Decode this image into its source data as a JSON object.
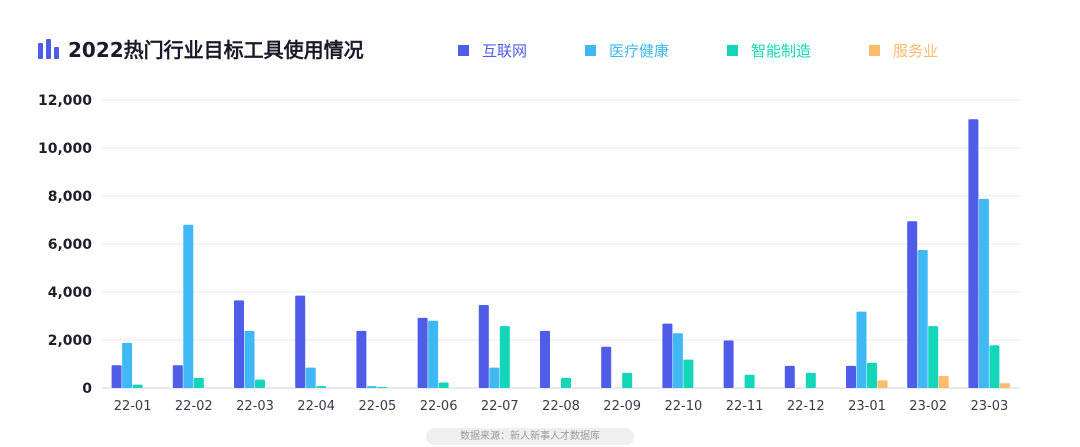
{
  "header": {
    "title": "2022热门行业目标工具使用情况",
    "icon": "bar-chart-icon"
  },
  "footer": {
    "source": "数据来源：新人新事人才数据库"
  },
  "chart_data": {
    "type": "bar",
    "title": "2022热门行业目标工具使用情况",
    "xlabel": "",
    "ylabel": "",
    "ylim": [
      0,
      12000
    ],
    "yticks": [
      0,
      2000,
      4000,
      6000,
      8000,
      10000,
      12000
    ],
    "ytick_labels": [
      "0",
      "2,000",
      "4,000",
      "6,000",
      "8,000",
      "10,000",
      "12,000"
    ],
    "grid": true,
    "legend_position": "top",
    "categories": [
      "22-01",
      "22-02",
      "22-03",
      "22-04",
      "22-05",
      "22-06",
      "22-07",
      "22-08",
      "22-09",
      "22-10",
      "22-11",
      "22-12",
      "23-01",
      "23-02",
      "23-03"
    ],
    "series": [
      {
        "name": "互联网",
        "color": "#4f5ce8",
        "values": [
          950,
          950,
          3650,
          3850,
          2380,
          2920,
          3460,
          2380,
          1720,
          2680,
          1980,
          920,
          920,
          6950,
          11200
        ]
      },
      {
        "name": "医疗健康",
        "color": "#3fb8f5",
        "values": [
          1880,
          6800,
          2380,
          850,
          80,
          2800,
          850,
          0,
          0,
          2280,
          0,
          0,
          3180,
          5750,
          7880
        ]
      },
      {
        "name": "智能制造",
        "color": "#13d6b8",
        "values": [
          140,
          420,
          350,
          80,
          40,
          230,
          2580,
          420,
          630,
          1180,
          550,
          630,
          1050,
          2580,
          1780
        ]
      },
      {
        "name": "服务业",
        "color": "#fcbb6d",
        "values": [
          0,
          0,
          0,
          0,
          0,
          0,
          0,
          0,
          0,
          0,
          0,
          0,
          320,
          500,
          200
        ]
      }
    ]
  }
}
